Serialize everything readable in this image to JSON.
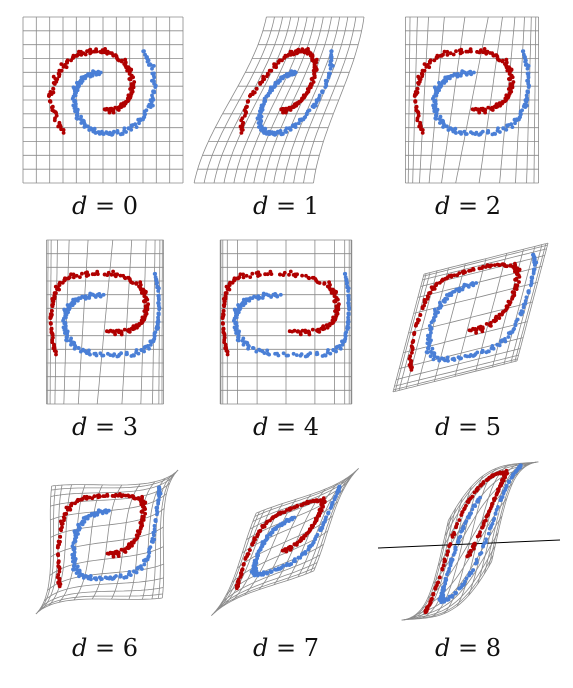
{
  "colors": {
    "grid": "#8a8a8a",
    "class_a": "#4a7fd6",
    "class_b": "#b00000"
  },
  "panels": [
    {
      "var": "d",
      "eq": "=",
      "depth": "0"
    },
    {
      "var": "d",
      "eq": "=",
      "depth": "1"
    },
    {
      "var": "d",
      "eq": "=",
      "depth": "2"
    },
    {
      "var": "d",
      "eq": "=",
      "depth": "3"
    },
    {
      "var": "d",
      "eq": "=",
      "depth": "4"
    },
    {
      "var": "d",
      "eq": "=",
      "depth": "5"
    },
    {
      "var": "d",
      "eq": "=",
      "depth": "6"
    },
    {
      "var": "d",
      "eq": "=",
      "depth": "7"
    },
    {
      "var": "d",
      "eq": "=",
      "depth": "8"
    }
  ]
}
